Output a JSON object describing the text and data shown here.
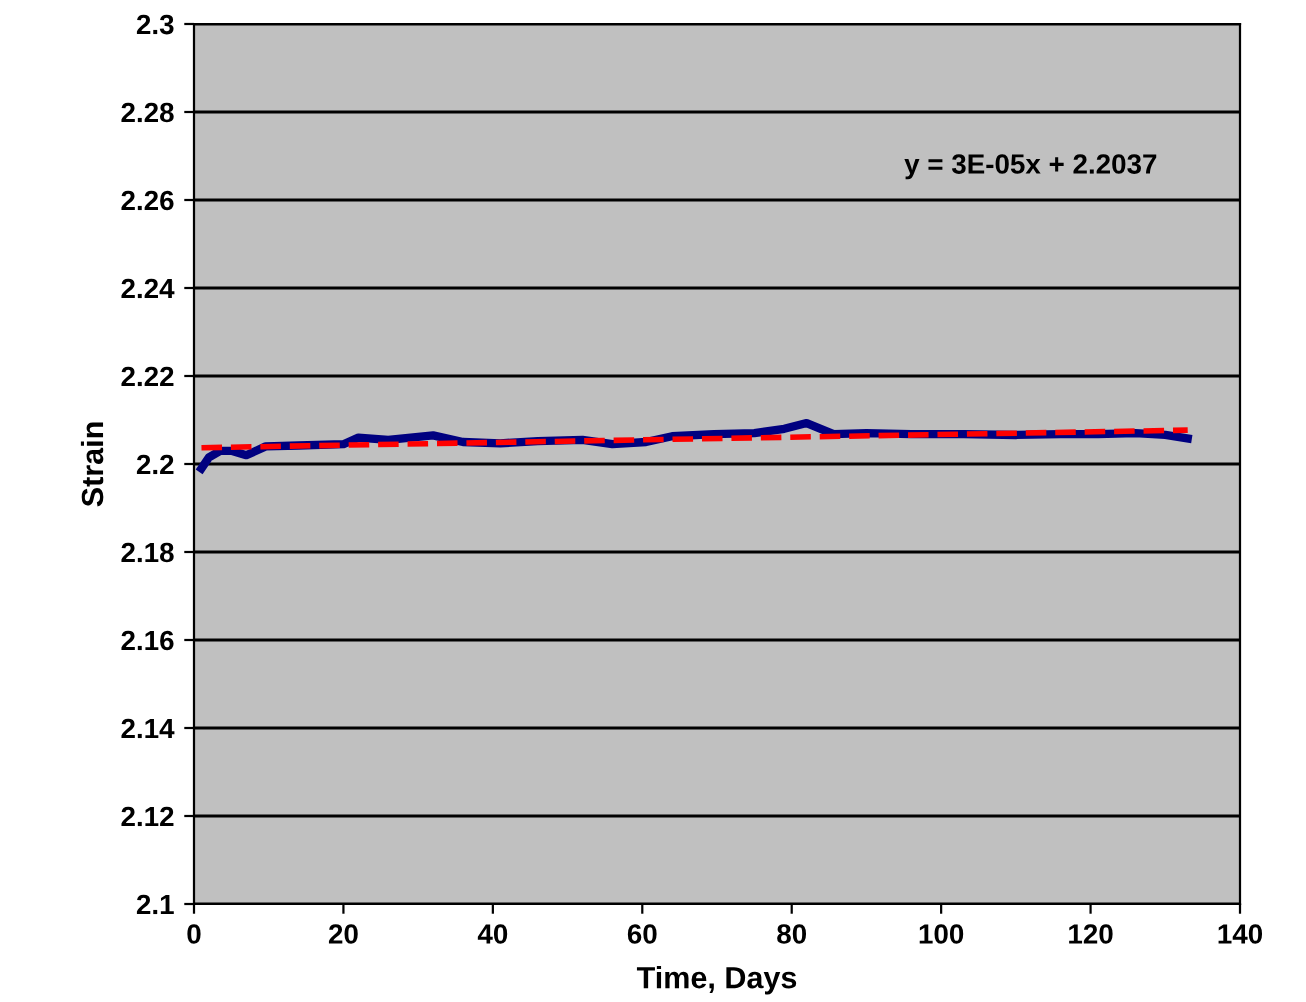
{
  "chart_data": {
    "type": "line",
    "xlabel": "Time, Days",
    "ylabel": "Strain",
    "xlim": [
      0,
      140
    ],
    "xticks": [
      0,
      20,
      40,
      60,
      80,
      100,
      120,
      140
    ],
    "ylim": [
      2.1,
      2.3
    ],
    "yticks": [
      2.1,
      2.12,
      2.14,
      2.16,
      2.18,
      2.2,
      2.22,
      2.24,
      2.26,
      2.28,
      2.3
    ],
    "grid": "y",
    "annotations": [
      "y = 3E-05x + 2.2037"
    ],
    "series": [
      {
        "color": "#000080",
        "x": [
          1,
          2,
          3.5,
          5,
          7,
          9.6,
          14,
          20,
          22,
          26,
          32,
          36,
          41,
          46,
          52,
          56,
          60.5,
          64,
          69.6,
          75,
          79,
          82,
          85.6,
          90,
          96,
          103,
          110,
          116,
          121,
          126,
          130,
          133
        ],
        "values": [
          2.199,
          2.2015,
          2.203,
          2.203,
          2.202,
          2.204,
          2.2042,
          2.2045,
          2.206,
          2.2055,
          2.2065,
          2.205,
          2.2047,
          2.2052,
          2.2055,
          2.2045,
          2.205,
          2.2063,
          2.2068,
          2.207,
          2.208,
          2.2093,
          2.2068,
          2.207,
          2.2068,
          2.2068,
          2.2066,
          2.2068,
          2.2068,
          2.207,
          2.2066,
          2.2058
        ]
      },
      {
        "type": "line",
        "color": "#ff0000",
        "line_style": "dashed",
        "x": [
          1,
          133
        ],
        "values": [
          2.2037,
          2.2077
        ]
      }
    ]
  }
}
